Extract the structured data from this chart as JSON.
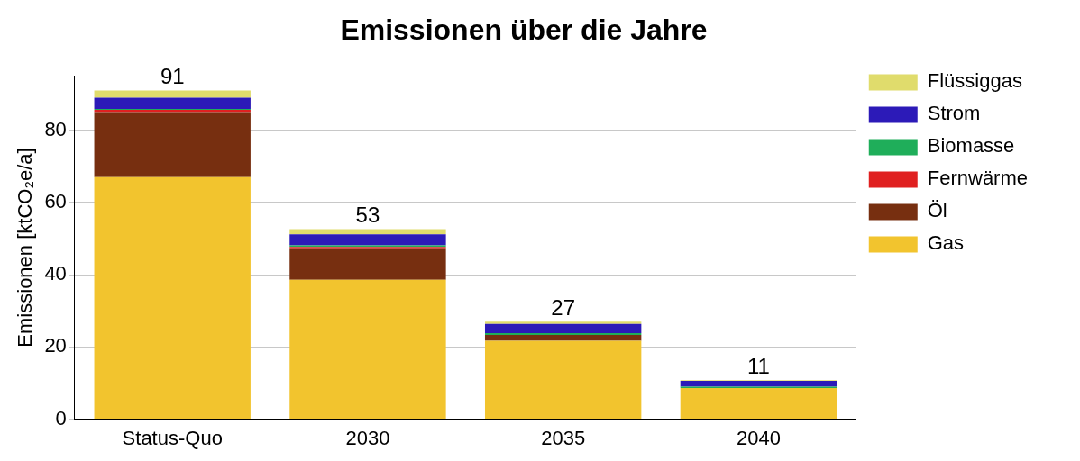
{
  "chart_data": {
    "type": "bar",
    "title": "Emissionen über die Jahre",
    "ylabel": "Emissionen [ktCO₂e/a]",
    "categories": [
      "Status-Quo",
      "2030",
      "2035",
      "2040"
    ],
    "stacked": true,
    "series": [
      {
        "name": "Gas",
        "color": "#f2c42e",
        "values": [
          67.0,
          38.6,
          21.7,
          8.6
        ]
      },
      {
        "name": "Öl",
        "color": "#772f10",
        "values": [
          18.0,
          8.7,
          1.6,
          null
        ]
      },
      {
        "name": "Fernwärme",
        "color": "#e02020",
        "values": [
          0.6,
          0.4,
          null,
          null
        ]
      },
      {
        "name": "Biomasse",
        "color": "#1fae5a",
        "values": [
          0.3,
          0.4,
          0.5,
          0.4
        ]
      },
      {
        "name": "Strom",
        "color": "#2c1ab8",
        "values": [
          3.1,
          3.1,
          2.6,
          1.6
        ]
      },
      {
        "name": "Flüssiggas",
        "color": "#e0dc6c",
        "values": [
          2.0,
          1.4,
          0.6,
          0.2
        ]
      }
    ],
    "totals": [
      "91",
      "53",
      "27",
      "11"
    ],
    "ylim": [
      0,
      95
    ],
    "yticks": [
      0,
      20,
      40,
      60,
      80
    ],
    "grid": "y",
    "legend": "right"
  }
}
